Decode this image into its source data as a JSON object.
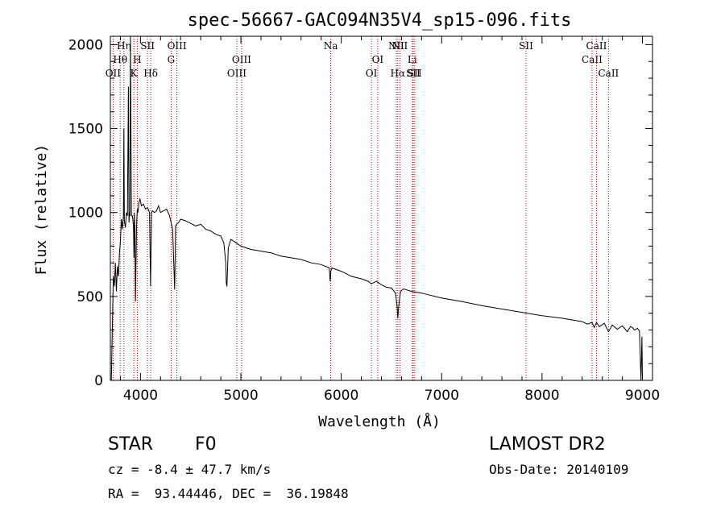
{
  "chart_data": {
    "type": "line",
    "title": "spec-56667-GAC094N35V4_sp15-096.fits",
    "xlabel": "Wavelength (Å)",
    "ylabel": "Flux (relative)",
    "xlim": [
      3700,
      9100
    ],
    "ylim": [
      0,
      2050
    ],
    "xticks": [
      4000,
      5000,
      6000,
      7000,
      8000,
      9000
    ],
    "yticks": [
      0,
      500,
      1000,
      1500,
      2000
    ],
    "grid": false,
    "series": [
      {
        "x": [
          3700,
          3710,
          3720,
          3730,
          3740,
          3750,
          3760,
          3770,
          3780,
          3790,
          3800,
          3810,
          3820,
          3830,
          3835,
          3840,
          3850,
          3860,
          3870,
          3880,
          3885,
          3890,
          3895,
          3900,
          3910,
          3920,
          3930,
          3935,
          3940,
          3945,
          3950,
          3960,
          3968,
          3975,
          3985,
          3995,
          4010,
          4030,
          4050,
          4070,
          4090,
          4100,
          4110,
          4120,
          4140,
          4160,
          4180,
          4200,
          4230,
          4260,
          4290,
          4320,
          4340,
          4350,
          4360,
          4380,
          4400,
          4450,
          4500,
          4550,
          4600,
          4650,
          4700,
          4750,
          4800,
          4830,
          4850,
          4855,
          4861,
          4867,
          4875,
          4900,
          4950,
          5000,
          5100,
          5200,
          5300,
          5400,
          5500,
          5600,
          5700,
          5800,
          5880,
          5890,
          5896,
          5905,
          5950,
          6000,
          6100,
          6200,
          6270,
          6300,
          6350,
          6400,
          6450,
          6500,
          6540,
          6555,
          6563,
          6572,
          6590,
          6620,
          6700,
          6800,
          7000,
          7200,
          7400,
          7600,
          7800,
          8000,
          8200,
          8400,
          8450,
          8498,
          8520,
          8542,
          8570,
          8620,
          8662,
          8700,
          8750,
          8800,
          8850,
          8880,
          8900,
          8920,
          8950,
          8970,
          8985,
          8995,
          9000
        ],
        "values": [
          0,
          0,
          330,
          620,
          560,
          700,
          530,
          680,
          620,
          750,
          830,
          960,
          900,
          980,
          1500,
          950,
          910,
          1000,
          980,
          1750,
          940,
          1000,
          980,
          2050,
          980,
          980,
          920,
          730,
          1000,
          900,
          470,
          900,
          1020,
          1000,
          1060,
          1080,
          1040,
          1050,
          1020,
          1030,
          1000,
          560,
          1000,
          1010,
          1000,
          1010,
          1040,
          1000,
          1010,
          1020,
          980,
          900,
          540,
          920,
          930,
          940,
          960,
          950,
          935,
          920,
          930,
          900,
          890,
          870,
          860,
          820,
          700,
          580,
          560,
          650,
          790,
          840,
          820,
          800,
          780,
          770,
          760,
          740,
          730,
          720,
          700,
          690,
          670,
          590,
          650,
          670,
          660,
          650,
          620,
          605,
          590,
          575,
          590,
          570,
          555,
          550,
          520,
          450,
          370,
          440,
          530,
          545,
          530,
          520,
          490,
          470,
          445,
          425,
          405,
          385,
          370,
          350,
          335,
          345,
          315,
          345,
          320,
          340,
          290,
          330,
          305,
          325,
          290,
          320,
          315,
          300,
          310,
          295,
          0,
          260,
          0
        ]
      }
    ],
    "line_markers": [
      {
        "label": "OII",
        "x": 3727,
        "row": 3
      },
      {
        "label": "Hθ",
        "x": 3798,
        "row": 2
      },
      {
        "label": "Hη",
        "x": 3835,
        "row": 1
      },
      {
        "label": "K",
        "x": 3934,
        "row": 3
      },
      {
        "label": "H",
        "x": 3968,
        "row": 2
      },
      {
        "label": "SII",
        "x": 4070,
        "row": 1
      },
      {
        "label": "Hδ",
        "x": 4102,
        "row": 3
      },
      {
        "label": "G",
        "x": 4305,
        "row": 2
      },
      {
        "label": "OIII",
        "x": 4363,
        "row": 1
      },
      {
        "label": "OIII",
        "x": 4959,
        "row": 3
      },
      {
        "label": "OIII",
        "x": 5007,
        "row": 2
      },
      {
        "label": "Na",
        "x": 5895,
        "row": 1
      },
      {
        "label": "OI",
        "x": 6300,
        "row": 3
      },
      {
        "label": "OI",
        "x": 6363,
        "row": 2
      },
      {
        "label": "NII",
        "x": 6548,
        "row": 1
      },
      {
        "label": "Hα",
        "x": 6563,
        "row": 3
      },
      {
        "label": "NII",
        "x": 6583,
        "row": 1
      },
      {
        "label": "Li",
        "x": 6707,
        "row": 2
      },
      {
        "label": "SII",
        "x": 6716,
        "row": 3
      },
      {
        "label": "SII",
        "x": 6731,
        "row": 3
      },
      {
        "label": "SII",
        "x": 7840,
        "row": 1
      },
      {
        "label": "CaII",
        "x": 8498,
        "row": 2
      },
      {
        "label": "CaII",
        "x": 8542,
        "row": 1
      },
      {
        "label": "CaII",
        "x": 8662,
        "row": 3
      }
    ],
    "annotations": {
      "class": "STAR",
      "subclass": "F0",
      "survey": "LAMOST DR2",
      "cz": "cz = -8.4 ± 47.7 km/s",
      "obs_date": "Obs-Date: 20140109",
      "radec": "RA =  93.44446, DEC =  36.19848"
    }
  }
}
